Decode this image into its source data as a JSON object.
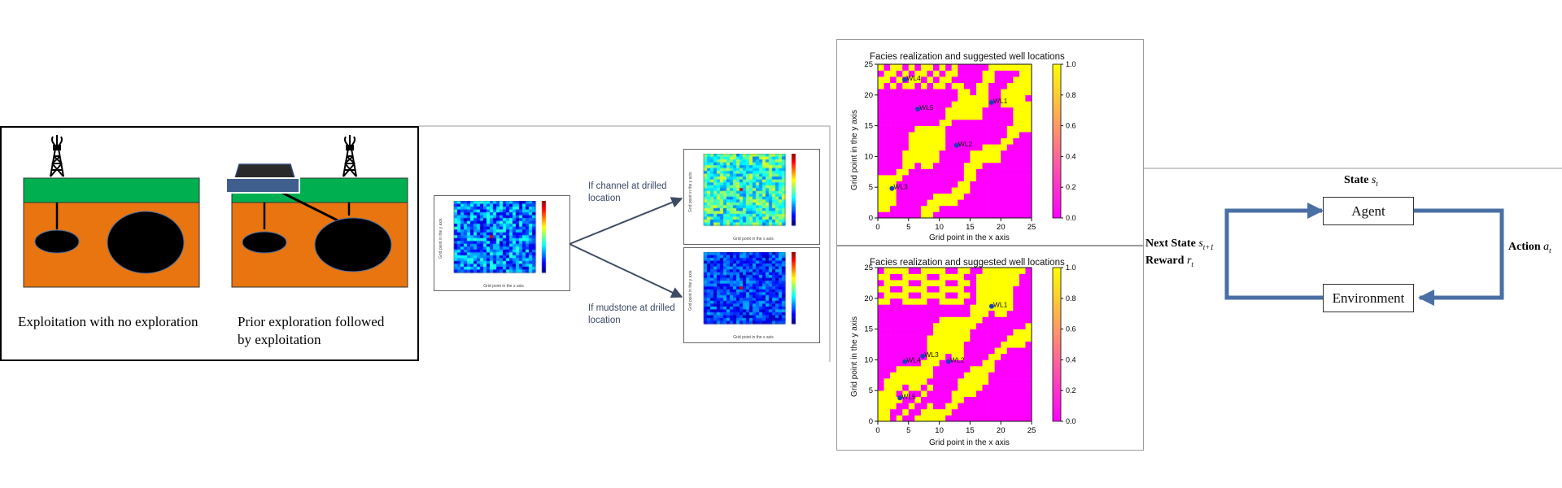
{
  "panel_a": {
    "caption_left": "Exploitation with no exploration",
    "caption_right_line1": "Prior exploration followed",
    "caption_right_line2": "by exploitation",
    "colors": {
      "sky": "#ffffff",
      "grass": "#00b050",
      "rock": "#e8750f",
      "reservoir": "#000000",
      "rig": "#000000"
    }
  },
  "panel_b": {
    "branch_top_line1": "If channel at drilled",
    "branch_top_line2": "location",
    "branch_bottom_line1": "If mudstone at drilled",
    "branch_bottom_line2": "location",
    "small_x_label": "Grid point in the x axis",
    "small_y_label": "Grid point in the y axis",
    "colors": {
      "arrow": "#3d4a63"
    }
  },
  "panel_c": {
    "charts": [
      {
        "title": "Facies realization and suggested well locations",
        "xlabel": "Grid point in the x axis",
        "ylabel": "Grid point in the y axis",
        "xticks": [
          "0",
          "5",
          "10",
          "15",
          "20",
          "25"
        ],
        "yticks": [
          "0",
          "5",
          "10",
          "15",
          "20",
          "25"
        ],
        "cbar_ticks": [
          "0.0",
          "0.2",
          "0.4",
          "0.6",
          "0.8",
          "1.0"
        ],
        "wells": [
          {
            "label": "WL1",
            "x": 18.5,
            "y": 18.8
          },
          {
            "label": "WL2",
            "x": 12.8,
            "y": 11.8
          },
          {
            "label": "WL3",
            "x": 2.3,
            "y": 4.8
          },
          {
            "label": "WL4",
            "x": 4.4,
            "y": 22.5
          },
          {
            "label": "WL5",
            "x": 6.5,
            "y": 17.7
          }
        ]
      },
      {
        "title": "Facies realization and suggested well locations",
        "xlabel": "Grid point in the x axis",
        "ylabel": "Grid point in the y axis",
        "xticks": [
          "0",
          "5",
          "10",
          "15",
          "20",
          "25"
        ],
        "yticks": [
          "0",
          "5",
          "10",
          "15",
          "20",
          "25"
        ],
        "cbar_ticks": [
          "0.0",
          "0.2",
          "0.4",
          "0.6",
          "0.8",
          "1.0"
        ],
        "wells": [
          {
            "label": "WL1",
            "x": 18.5,
            "y": 18.7
          },
          {
            "label": "WL2",
            "x": 11.5,
            "y": 9.7
          },
          {
            "label": "WL3",
            "x": 7.3,
            "y": 10.6
          },
          {
            "label": "WL4",
            "x": 4.4,
            "y": 9.7
          },
          {
            "label": "WL5",
            "x": 3.6,
            "y": 3.8
          }
        ]
      }
    ],
    "colors": {
      "yellow": "#ffff00",
      "magenta": "#ff00ff",
      "well": "#1f3fbf"
    }
  },
  "panel_d": {
    "state_label": "State",
    "state_symbol": "s",
    "state_sub": "t",
    "agent_label": "Agent",
    "environment_label": "Environment",
    "action_label": "Action",
    "action_symbol": "a",
    "action_sub": "t",
    "next_state_label": "Next State",
    "next_state_symbol": "s",
    "next_state_sub": "t+1",
    "reward_label": "Reward",
    "reward_symbol": "r",
    "reward_sub": "t",
    "colors": {
      "agent": "#ffff00",
      "environment": "#9bbb59",
      "arrow": "#4a6fa5"
    }
  }
}
